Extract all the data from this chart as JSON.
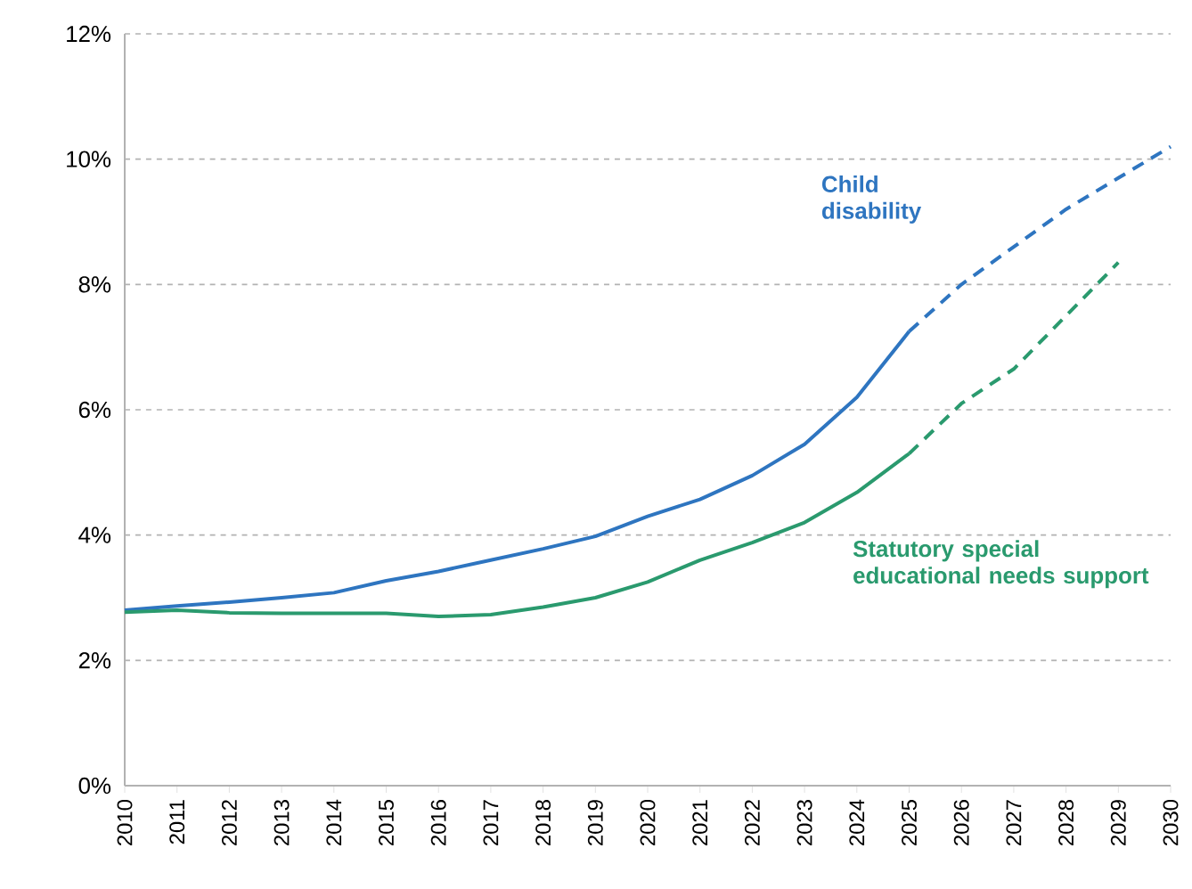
{
  "chart_data": {
    "type": "line",
    "x": [
      2010,
      2011,
      2012,
      2013,
      2014,
      2015,
      2016,
      2017,
      2018,
      2019,
      2020,
      2021,
      2022,
      2023,
      2024,
      2025
    ],
    "series": [
      {
        "name": "Child disability",
        "color": "#2e75c0",
        "line_style": "solid",
        "values": [
          2.8,
          2.87,
          2.93,
          3.0,
          3.08,
          3.27,
          3.42,
          3.6,
          3.78,
          3.98,
          4.3,
          4.57,
          4.95,
          5.45,
          6.2,
          7.25
        ]
      },
      {
        "name": "Statutory special educational needs support",
        "color": "#2a9a6e",
        "line_style": "solid",
        "values": [
          2.77,
          2.8,
          2.76,
          2.75,
          2.75,
          2.75,
          2.7,
          2.73,
          2.85,
          3.0,
          3.25,
          3.6,
          3.88,
          4.2,
          4.68,
          5.3
        ]
      },
      {
        "color": "#2e75c0",
        "line_style": "dashed",
        "x": [
          2025,
          2026,
          2027,
          2028,
          2029,
          2030
        ],
        "values": [
          7.25,
          8.0,
          8.6,
          9.2,
          9.7,
          10.2
        ]
      },
      {
        "color": "#2a9a6e",
        "line_style": "dashed",
        "x": [
          2025,
          2026,
          2027,
          2028,
          2029
        ],
        "values": [
          5.3,
          6.1,
          6.65,
          7.5,
          8.35
        ]
      }
    ],
    "xlim": [
      2010,
      2030
    ],
    "xticks": [
      2010,
      2011,
      2012,
      2013,
      2014,
      2015,
      2016,
      2017,
      2018,
      2019,
      2020,
      2021,
      2022,
      2023,
      2024,
      2025,
      2026,
      2027,
      2028,
      2029,
      2030
    ],
    "ylim": [
      0,
      12
    ],
    "yticks": [
      {
        "value": 0,
        "label": "0%"
      },
      {
        "value": 2,
        "label": "2%"
      },
      {
        "value": 4,
        "label": "4%"
      },
      {
        "value": 6,
        "label": "6%"
      },
      {
        "value": 8,
        "label": "8%"
      },
      {
        "value": 10,
        "label": "10%"
      },
      {
        "value": 12,
        "label": "12%"
      }
    ],
    "grid": "y",
    "legend": false,
    "marker": "none"
  }
}
